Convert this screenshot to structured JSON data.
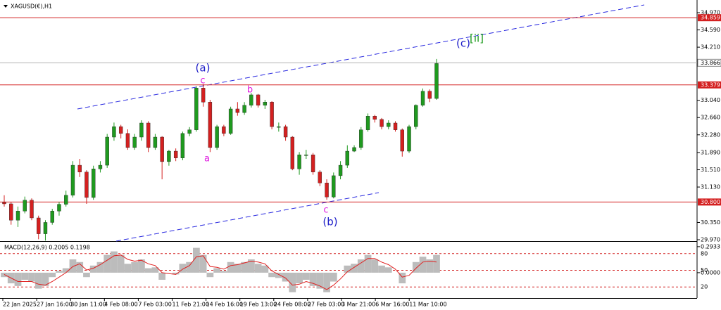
{
  "chart_data": {
    "type": "candlestick",
    "title": "XAGUSD(€),H1",
    "up_color": "#1f9a1f",
    "down_color": "#d42020",
    "ylim": [
      29.939,
      35.249
    ],
    "yticks": [
      {
        "value": 34.97,
        "label": "34.970"
      },
      {
        "value": 34.59,
        "label": "34.590"
      },
      {
        "value": 34.21,
        "label": "34.210"
      },
      {
        "value": 33.04,
        "label": "33.040"
      },
      {
        "value": 32.66,
        "label": "32.660"
      },
      {
        "value": 32.28,
        "label": "32.280"
      },
      {
        "value": 31.89,
        "label": "31.890"
      },
      {
        "value": 31.51,
        "label": "31.510"
      },
      {
        "value": 31.13,
        "label": "31.130"
      },
      {
        "value": 30.35,
        "label": "30.350"
      },
      {
        "value": 29.97,
        "label": "29.970"
      }
    ],
    "levels": [
      {
        "value": 34.859,
        "label": "34.859"
      },
      {
        "value": 33.379,
        "label": "33.379"
      },
      {
        "value": 30.8,
        "label": "30.800"
      }
    ],
    "last_price": {
      "value": 33.866,
      "label": "33.866"
    },
    "xlabels": [
      "22 Jan 2025",
      "27 Jan 16:00",
      "30 Jan 11:00",
      "4 Feb 08:00",
      "7 Feb 03:00",
      "11 Feb 21:00",
      "14 Feb 16:00",
      "19 Feb 13:00",
      "24 Feb 08:00",
      "27 Feb 03:00",
      "3 Mar 21:00",
      "6 Mar 16:00",
      "11 Mar 10:00"
    ],
    "wave_labels": [
      "(a)",
      "c",
      "b",
      "a",
      "c",
      "(b)",
      "(c)",
      "[ii]"
    ],
    "ohlc": [
      [
        30.8,
        30.95,
        30.7,
        30.76
      ],
      [
        30.76,
        30.8,
        30.3,
        30.4
      ],
      [
        30.4,
        30.7,
        30.25,
        30.6
      ],
      [
        30.6,
        30.92,
        30.55,
        30.84
      ],
      [
        30.84,
        30.88,
        30.4,
        30.45
      ],
      [
        30.45,
        30.5,
        29.98,
        30.1
      ],
      [
        30.1,
        30.4,
        29.95,
        30.35
      ],
      [
        30.35,
        30.65,
        30.3,
        30.6
      ],
      [
        30.6,
        30.8,
        30.5,
        30.75
      ],
      [
        30.75,
        31.05,
        30.7,
        30.95
      ],
      [
        30.95,
        31.7,
        30.9,
        31.61
      ],
      [
        31.61,
        31.75,
        31.35,
        31.46
      ],
      [
        31.46,
        31.5,
        30.76,
        30.9
      ],
      [
        30.9,
        31.6,
        30.85,
        31.53
      ],
      [
        31.53,
        31.7,
        31.45,
        31.61
      ],
      [
        31.61,
        32.3,
        31.55,
        32.23
      ],
      [
        32.23,
        32.55,
        32.15,
        32.46
      ],
      [
        32.46,
        32.5,
        32.2,
        32.31
      ],
      [
        32.31,
        32.4,
        31.95,
        32.0
      ],
      [
        32.0,
        32.3,
        31.95,
        32.23
      ],
      [
        32.23,
        32.6,
        32.15,
        32.54
      ],
      [
        32.54,
        32.58,
        31.9,
        32.0
      ],
      [
        32.0,
        32.3,
        31.95,
        32.23
      ],
      [
        32.23,
        32.25,
        31.3,
        31.69
      ],
      [
        31.69,
        31.95,
        31.6,
        31.92
      ],
      [
        31.92,
        31.98,
        31.7,
        31.77
      ],
      [
        31.77,
        32.35,
        31.72,
        32.31
      ],
      [
        32.31,
        32.45,
        32.25,
        32.39
      ],
      [
        32.39,
        33.35,
        32.35,
        33.31
      ],
      [
        33.31,
        33.4,
        32.9,
        33.0
      ],
      [
        33.0,
        33.05,
        31.9,
        32.0
      ],
      [
        32.0,
        32.5,
        31.95,
        32.46
      ],
      [
        32.46,
        32.5,
        32.25,
        32.31
      ],
      [
        32.31,
        32.9,
        32.28,
        32.85
      ],
      [
        32.85,
        33.0,
        32.7,
        32.77
      ],
      [
        32.77,
        33.0,
        32.72,
        32.93
      ],
      [
        32.93,
        33.2,
        32.88,
        33.16
      ],
      [
        33.16,
        33.18,
        32.88,
        32.93
      ],
      [
        32.93,
        33.05,
        32.85,
        33.0
      ],
      [
        33.0,
        33.02,
        32.4,
        32.46
      ],
      [
        32.46,
        32.55,
        32.35,
        32.46
      ],
      [
        32.46,
        32.5,
        32.15,
        32.23
      ],
      [
        32.23,
        32.25,
        31.5,
        31.53
      ],
      [
        31.53,
        31.9,
        31.4,
        31.84
      ],
      [
        31.84,
        31.95,
        31.75,
        31.84
      ],
      [
        31.84,
        31.88,
        31.4,
        31.46
      ],
      [
        31.46,
        31.5,
        31.15,
        31.22
      ],
      [
        31.22,
        31.3,
        30.85,
        30.91
      ],
      [
        30.91,
        31.45,
        30.88,
        31.38
      ],
      [
        31.38,
        31.7,
        31.3,
        31.61
      ],
      [
        31.61,
        32.05,
        31.55,
        31.92
      ],
      [
        31.92,
        32.05,
        31.9,
        32.0
      ],
      [
        32.0,
        32.45,
        31.95,
        32.39
      ],
      [
        32.39,
        32.75,
        32.35,
        32.69
      ],
      [
        32.69,
        32.72,
        32.55,
        32.62
      ],
      [
        32.62,
        32.65,
        32.4,
        32.46
      ],
      [
        32.46,
        32.6,
        32.4,
        32.54
      ],
      [
        32.54,
        32.58,
        32.35,
        32.39
      ],
      [
        32.39,
        32.42,
        31.8,
        31.92
      ],
      [
        31.92,
        32.5,
        31.88,
        32.46
      ],
      [
        32.46,
        32.95,
        32.4,
        32.93
      ],
      [
        32.93,
        33.3,
        32.9,
        33.24
      ],
      [
        33.24,
        33.28,
        33.0,
        33.08
      ],
      [
        33.08,
        33.95,
        33.05,
        33.85
      ]
    ],
    "macd": {
      "label": "MACD(12,26,9) 0.2005 0.1198",
      "ylim": [
        -0.286,
        0.34
      ],
      "yticks": [
        {
          "value": 0.2933,
          "label": "0.2933"
        },
        {
          "value": 0,
          "label": "0.0000"
        }
      ],
      "y2lim": [
        0,
        100
      ],
      "y2ticks": [
        80,
        50,
        20
      ],
      "histogram": [
        -0.05,
        -0.12,
        -0.15,
        -0.08,
        -0.1,
        -0.18,
        -0.15,
        -0.05,
        0.02,
        0.05,
        0.15,
        0.12,
        -0.05,
        0.08,
        0.12,
        0.2,
        0.24,
        0.2,
        0.1,
        0.12,
        0.15,
        0.05,
        0.06,
        -0.08,
        0.0,
        -0.02,
        0.1,
        0.12,
        0.28,
        0.2,
        -0.05,
        0.05,
        0.02,
        0.12,
        0.1,
        0.12,
        0.15,
        0.1,
        0.08,
        -0.05,
        -0.06,
        -0.1,
        -0.22,
        -0.12,
        -0.08,
        -0.15,
        -0.18,
        -0.22,
        -0.1,
        0.0,
        0.08,
        0.1,
        0.15,
        0.2,
        0.15,
        0.08,
        0.06,
        0.0,
        -0.12,
        0.0,
        0.12,
        0.18,
        0.15,
        0.2
      ],
      "signal": [
        -0.02,
        -0.06,
        -0.1,
        -0.1,
        -0.1,
        -0.13,
        -0.14,
        -0.1,
        -0.05,
        0.0,
        0.07,
        0.1,
        0.03,
        0.05,
        0.09,
        0.14,
        0.19,
        0.2,
        0.15,
        0.13,
        0.14,
        0.1,
        0.08,
        0.0,
        -0.01,
        -0.02,
        0.04,
        0.08,
        0.18,
        0.19,
        0.07,
        0.06,
        0.04,
        0.08,
        0.09,
        0.11,
        0.13,
        0.12,
        0.1,
        0.02,
        -0.02,
        -0.06,
        -0.14,
        -0.13,
        -0.1,
        -0.12,
        -0.15,
        -0.19,
        -0.14,
        -0.07,
        0.01,
        0.06,
        0.11,
        0.16,
        0.16,
        0.12,
        0.09,
        0.04,
        -0.05,
        -0.03,
        0.05,
        0.12,
        0.13,
        0.12
      ]
    }
  }
}
